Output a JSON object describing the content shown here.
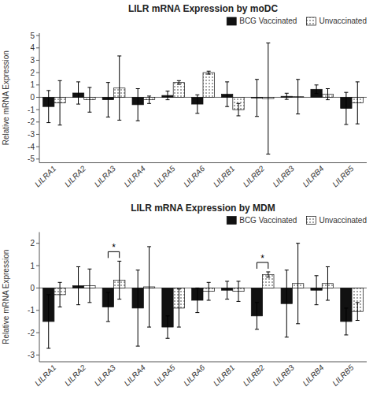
{
  "chart_data": [
    {
      "type": "bar",
      "title": "LILR mRNA Expression by moDC",
      "ylabel": "Relative mRNA Expression",
      "categories": [
        "LILRA1",
        "LILRA2",
        "LILRA3",
        "LILRA4",
        "LILRA5",
        "LILRA6",
        "LILRB1",
        "LILRB2",
        "LILRB3",
        "LILRB4",
        "LILRB5"
      ],
      "series": [
        {
          "name": "BCG Vaccinated",
          "color": "#111111",
          "values": [
            -0.75,
            0.35,
            -0.2,
            -0.6,
            0.15,
            -0.55,
            0.25,
            -0.05,
            0.08,
            0.65,
            -0.9
          ],
          "errors": [
            1.3,
            0.9,
            1.4,
            1.3,
            0.35,
            0.75,
            1.0,
            1.5,
            0.25,
            0.35,
            1.3
          ]
        },
        {
          "name": "Unvaccinated",
          "color": "#ffffff",
          "values": [
            -0.45,
            -0.2,
            0.75,
            -0.2,
            1.2,
            2.0,
            -1.0,
            -0.1,
            0.05,
            0.25,
            -0.45
          ],
          "errors": [
            1.8,
            1.0,
            2.6,
            0.3,
            0.15,
            0.12,
            0.5,
            4.5,
            1.4,
            0.45,
            1.7
          ]
        }
      ],
      "ylim": [
        -5.3,
        5.2
      ],
      "yticks": [
        -5,
        -4,
        -3,
        -2,
        -1,
        0,
        1,
        2,
        3,
        4,
        5
      ],
      "grid": false,
      "legend": "upper right"
    },
    {
      "type": "bar",
      "title": "LILR mRNA Expression by MDM",
      "ylabel": "Relative mRNA Expression",
      "categories": [
        "LILRA1",
        "LILRA2",
        "LILRA3",
        "LILRA4",
        "LILRA5",
        "LILRA6",
        "LILRB1",
        "LILRB2",
        "LILRB3",
        "LILRB4",
        "LILRB5"
      ],
      "series": [
        {
          "name": "BCG Vaccinated",
          "color": "#111111",
          "values": [
            -1.5,
            0.1,
            -0.85,
            -0.9,
            -1.75,
            -0.55,
            -0.1,
            -1.25,
            -0.7,
            -0.1,
            -1.5
          ],
          "errors": [
            1.2,
            0.85,
            0.65,
            1.7,
            0.5,
            0.55,
            0.4,
            0.6,
            1.5,
            0.65,
            0.6
          ]
        },
        {
          "name": "Unvaccinated",
          "color": "#ffffff",
          "values": [
            -0.3,
            0.1,
            0.35,
            0.05,
            -0.9,
            -0.15,
            -0.15,
            0.6,
            0.2,
            0.2,
            -1.05
          ],
          "errors": [
            0.55,
            0.75,
            0.85,
            1.8,
            0.85,
            0.4,
            0.45,
            0.12,
            1.8,
            0.75,
            0.4
          ]
        }
      ],
      "ylim": [
        -3.3,
        2.5
      ],
      "yticks": [
        -3,
        -2,
        -1,
        0,
        1,
        2
      ],
      "annotations": [
        {
          "text": "*",
          "category": "LILRA3"
        },
        {
          "text": "*",
          "category": "LILRB2"
        }
      ],
      "grid": false,
      "legend": "upper right"
    }
  ]
}
